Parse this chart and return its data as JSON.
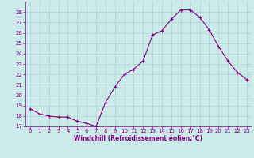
{
  "x": [
    0,
    1,
    2,
    3,
    4,
    5,
    6,
    7,
    8,
    9,
    10,
    11,
    12,
    13,
    14,
    15,
    16,
    17,
    18,
    19,
    20,
    21,
    22,
    23
  ],
  "y": [
    18.7,
    18.2,
    18.0,
    17.9,
    17.9,
    17.5,
    17.3,
    17.0,
    19.3,
    20.8,
    22.0,
    22.5,
    23.3,
    25.8,
    26.2,
    27.3,
    28.2,
    28.2,
    27.5,
    26.3,
    24.7,
    23.3,
    22.2,
    21.5
  ],
  "line_color": "#800080",
  "marker": "+",
  "bg_color": "#cceaea",
  "grid_color": "#aad4d4",
  "xlabel": "Windchill (Refroidissement éolien,°C)",
  "xlabel_color": "#800080",
  "tick_color": "#800080",
  "label_color": "#800080",
  "ylim": [
    17,
    29
  ],
  "yticks": [
    17,
    18,
    19,
    20,
    21,
    22,
    23,
    24,
    25,
    26,
    27,
    28
  ],
  "xlim": [
    -0.5,
    23.5
  ],
  "xticks": [
    0,
    1,
    2,
    3,
    4,
    5,
    6,
    7,
    8,
    9,
    10,
    11,
    12,
    13,
    14,
    15,
    16,
    17,
    18,
    19,
    20,
    21,
    22,
    23
  ],
  "tick_fontsize": 5.0,
  "xlabel_fontsize": 5.5
}
